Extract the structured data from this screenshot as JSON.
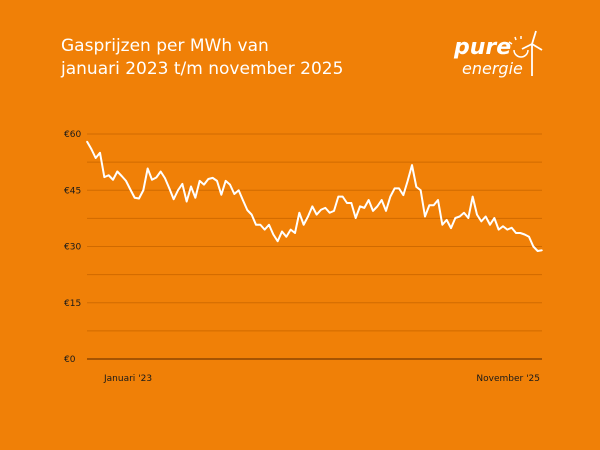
{
  "header": {
    "title_line1": "Gasprijzen per MWh van",
    "title_line2": "januari 2023 t/m november 2025"
  },
  "logo": {
    "text_top": "pure",
    "text_bottom": "energie"
  },
  "colors": {
    "background": "#f08007",
    "line": "#ffffff",
    "grid": "#d06a00",
    "axis": "#7a3a00"
  },
  "chart_data": {
    "type": "line",
    "title": "Gasprijzen per MWh van januari 2023 t/m november 2025",
    "x_range": [
      "Januari '23",
      "November '25"
    ],
    "x_tick_labels": [
      "Januari '23",
      "November '25"
    ],
    "y_tick_labels": [
      "€0",
      "€15",
      "€30",
      "€45",
      "€60"
    ],
    "y_ticks": [
      0,
      15,
      30,
      45,
      60
    ],
    "ylim": [
      0,
      60
    ],
    "grid": true,
    "grid_step": 7.5,
    "series": [
      {
        "values": [
          58,
          56,
          53.6,
          55,
          48.5,
          49,
          47.8,
          50,
          48.8,
          47.5,
          45.2,
          43,
          42.8,
          45,
          50.8,
          47.8,
          48.4,
          50,
          48.2,
          45.5,
          42.6,
          45,
          46.7,
          42,
          46,
          43,
          47.5,
          46.5,
          48,
          48.3,
          47.5,
          43.8,
          47.5,
          46.5,
          44,
          45,
          42.3,
          39.7,
          38.5,
          35.8,
          35.8,
          34.5,
          35.8,
          33.2,
          31.4,
          34,
          32.6,
          34.5,
          33.6,
          39,
          35.8,
          38,
          40.7,
          38.5,
          39.8,
          40.3,
          39,
          39.5,
          43.3,
          43.3,
          41.6,
          41.6,
          37.6,
          40.7,
          40.3,
          42.4,
          39.5,
          40.7,
          42.4,
          39.5,
          43.3,
          45.5,
          45.5,
          43.7,
          47.5,
          51.7,
          45.9,
          45,
          38,
          41,
          41,
          42.4,
          35.8,
          37.1,
          34.9,
          37.6,
          38,
          39,
          37.6,
          43.3,
          38.5,
          36.7,
          38,
          35.8,
          37.6,
          34.5,
          35.4,
          34.5,
          35,
          33.6,
          33.6,
          33.2,
          32.6,
          30,
          28.8,
          29
        ]
      }
    ]
  }
}
